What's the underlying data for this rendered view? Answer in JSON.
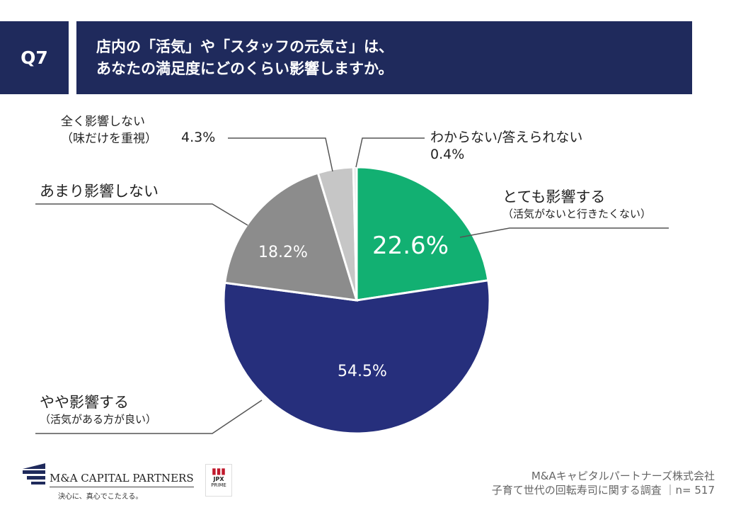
{
  "header": {
    "q": "Q7",
    "title_line1": "店内の「活気」や「スタッフの元気さ」は、",
    "title_line2": "あなたの満足度にどのくらい影響しますか。"
  },
  "chart_data": {
    "type": "pie",
    "title": "店内の「活気」や「スタッフの元気さ」は、あなたの満足度にどのくらい影響しますか。",
    "slices": [
      {
        "label": "とても影響する",
        "sublabel": "（活気がないと行きたくない）",
        "value": 22.6,
        "display": "22.6%",
        "color": "#12b072"
      },
      {
        "label": "やや影響する",
        "sublabel": "（活気がある方が良い）",
        "value": 54.5,
        "display": "54.5%",
        "color": "#262f7c"
      },
      {
        "label": "あまり影響しない",
        "sublabel": "",
        "value": 18.2,
        "display": "18.2%",
        "color": "#8c8c8c"
      },
      {
        "label": "全く影響しない",
        "sublabel": "（味だけを重視）",
        "value": 4.3,
        "display": "4.3%",
        "color": "#c6c6c6"
      },
      {
        "label": "わからない/答えられない",
        "sublabel": "",
        "value": 0.4,
        "display": "0.4%",
        "color": "#e2e2e2"
      }
    ]
  },
  "footer": {
    "company": "M&Aキャピタルパートナーズ株式会社",
    "survey": "子育て世代の回転寿司に関する調査 ｜n= 517",
    "logo_name": "M&A CAPITAL PARTNERS",
    "logo_tag": "決心に、真心でこたえる。",
    "jpx": "JPX",
    "prime": "PRIME"
  }
}
